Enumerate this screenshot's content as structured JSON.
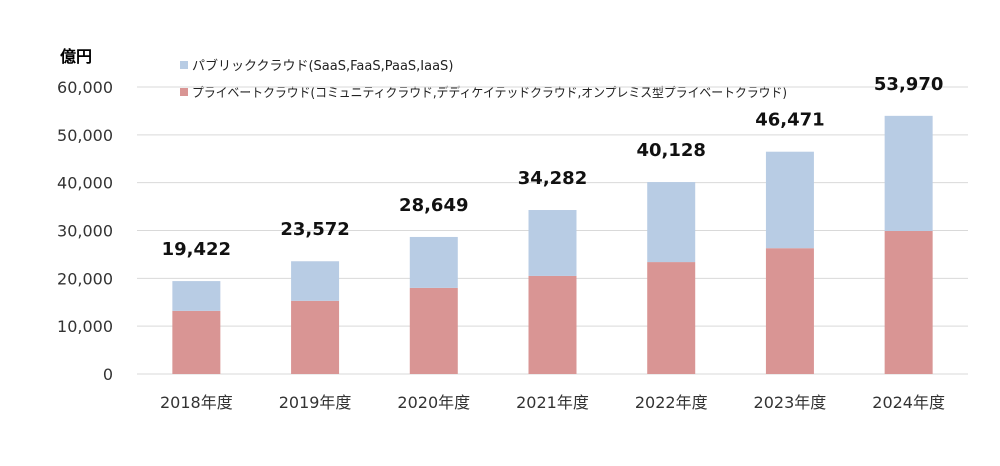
{
  "chart_data": {
    "type": "bar",
    "stacked": true,
    "unit_label": "億円",
    "categories": [
      "2018年度",
      "2019年度",
      "2020年度",
      "2021年度",
      "2022年度",
      "2023年度",
      "2024年度"
    ],
    "series": [
      {
        "name": "プライベートクラウド(コミュニティクラウド,デディケイテッドクラウド,オンプレミス型プライベートクラウド)",
        "color": "#d99594",
        "values": [
          13200,
          15300,
          18000,
          20500,
          23400,
          26300,
          29900
        ]
      },
      {
        "name": "パブリッククラウド(SaaS,FaaS,PaaS,IaaS)",
        "color": "#b8cce4",
        "values": [
          6222,
          8272,
          10649,
          13782,
          16728,
          20171,
          24070
        ]
      }
    ],
    "totals": [
      19422,
      23572,
      28649,
      34282,
      40128,
      46471,
      53970
    ],
    "total_labels": [
      "19,422",
      "23,572",
      "28,649",
      "34,282",
      "40,128",
      "46,471",
      "53,970"
    ],
    "ylim": [
      0,
      60000
    ],
    "yticks": [
      0,
      10000,
      20000,
      30000,
      40000,
      50000,
      60000
    ],
    "ytick_labels": [
      "0",
      "10,000",
      "20,000",
      "30,000",
      "40,000",
      "50,000",
      "60,000"
    ],
    "grid": true,
    "legend_position": "top"
  }
}
